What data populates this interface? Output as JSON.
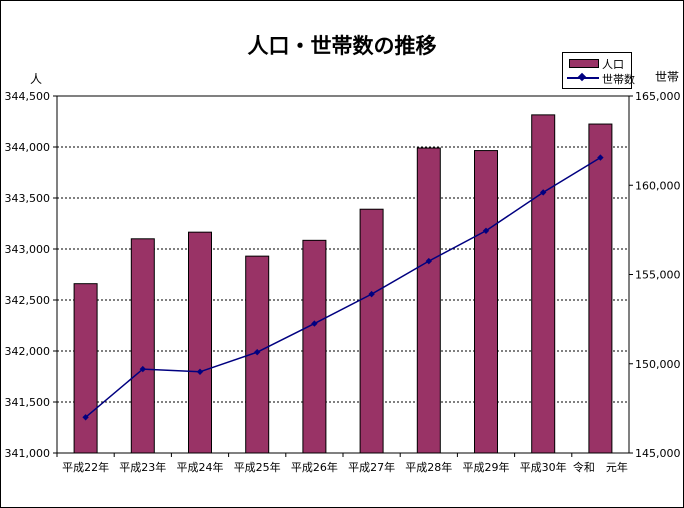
{
  "chart_data": {
    "type": "bar+line",
    "title": "人口・世帯数の推移",
    "left_unit": "人",
    "right_unit": "世帯",
    "categories": [
      "平成22年",
      "平成23年",
      "平成24年",
      "平成25年",
      "平成26年",
      "平成27年",
      "平成28年",
      "平成29年",
      "平成30年",
      "令和　元年"
    ],
    "series": [
      {
        "name": "人口",
        "type": "bar",
        "axis": "left",
        "color": "#993366",
        "values": [
          342660,
          343100,
          343165,
          342930,
          343085,
          343390,
          343990,
          343965,
          344315,
          344225
        ]
      },
      {
        "name": "世帯数",
        "type": "line",
        "axis": "right",
        "color": "#000080",
        "values": [
          147000,
          149700,
          149550,
          150650,
          152250,
          153900,
          155750,
          157450,
          159600,
          161550
        ]
      }
    ],
    "ylim_left": [
      341000,
      344500
    ],
    "yticks_left": [
      "341,000",
      "341,500",
      "342,000",
      "342,500",
      "343,000",
      "343,500",
      "344,000",
      "344,500"
    ],
    "ylim_right": [
      145000,
      165000
    ],
    "yticks_right": [
      "145,000",
      "150,000",
      "155,000",
      "160,000",
      "165,000"
    ],
    "grid": true,
    "legend_position": "top-right"
  }
}
